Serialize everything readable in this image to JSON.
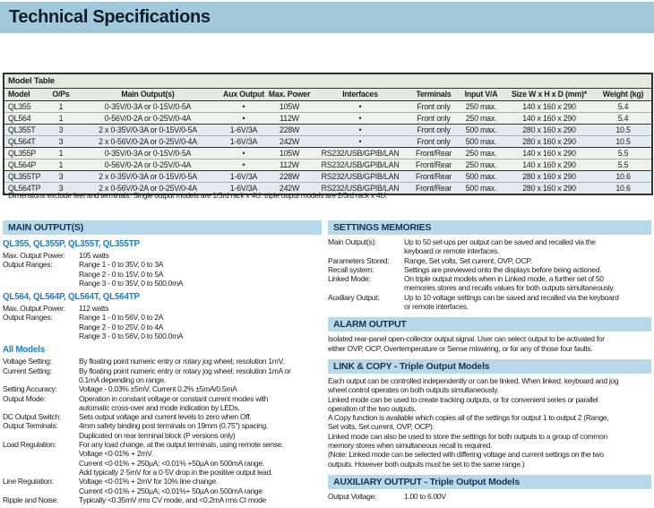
{
  "page": {
    "title": "Technical Specifications"
  },
  "colors": {
    "banner_bg": "#a2c8dc",
    "banner_text": "#101d28",
    "section_bar_bg": "#b7d9ea",
    "heading_text": "#14364f",
    "subhead_blue": "#1d7dc0",
    "body_text": "#1d1d1b",
    "table_header_bg": "#e6e9e0",
    "row_light": "#eef1ec",
    "row_blue": "#e2ebf0"
  },
  "model_table": {
    "title": "Model Table",
    "columns": [
      "Model",
      "O/Ps",
      "Main Output(s)",
      "Aux Output",
      "Max. Power",
      "Interfaces",
      "Terminals",
      "Input V/A",
      "Size W x H x D (mm)*",
      "Weight (kg)"
    ],
    "rows": [
      [
        "QL355",
        "1",
        "0-35V/0-3A or 0-15V/0-5A",
        "•",
        "105W",
        "•",
        "Front only",
        "250 max.",
        "140 x 160  x 290",
        "5.4"
      ],
      [
        "QL564",
        "1",
        "0-56V/0-2A or 0-25V/0-4A",
        "•",
        "112W",
        "•",
        "Front only",
        "250 max.",
        "140 x 160  x 290",
        "5.4"
      ],
      [
        "QL355T",
        "3",
        "2 x 0-35V/0-3A or 0-15V/0-5A",
        "1-6V/3A",
        "228W",
        "•",
        "Front only",
        "500 max.",
        "280 x 160  x 290",
        "10.5"
      ],
      [
        "QL564T",
        "3",
        "2 x 0-56V/0-2A or 0-25V/0-4A",
        "1-6V/3A",
        "242W",
        "•",
        "Front only",
        "500 max.",
        "280 x 160  x 290",
        "10.5"
      ],
      [
        "QL355P",
        "1",
        "0-35V/0-3A or 0-15V/0-5A",
        "•",
        "105W",
        "RS232/USB/GPIB/LAN",
        "Front/Rear",
        "250 max.",
        "140 x 160  x 290",
        "5.5"
      ],
      [
        "QL564P",
        "1",
        "0-56V/0-2A or 0-25V/0-4A",
        "•",
        "112W",
        "RS232/USB/GPIB/LAN",
        "Front/Rear",
        "250 max.",
        "140 x 160  x 290",
        "5.5"
      ],
      [
        "QL355TP",
        "3",
        "2 x 0-35V/0-3A or 0-15V/0-5A",
        "1-6V/3A",
        "228W",
        "RS232/USB/GPIB/LAN",
        "Front/Rear",
        "500 max.",
        "280 x 160  x 290",
        "10.6"
      ],
      [
        "QL564TP",
        "3",
        "2 x 0-56V/0-2A or 0-25V/0-4A",
        "1-6V/3A",
        "242W",
        "RS232/USB/GPIB/LAN",
        "Front/Rear",
        "500 max.",
        "280 x 160  x 290",
        "10.6"
      ]
    ],
    "footnote": "* Dimensions exclude feet and terminals.  Single output models are 1/3rd rack x 4U. triple ouput models are 2/3rd rack x 4U."
  },
  "main_outputs": {
    "heading": "MAIN OUTPUT(S)",
    "groups": [
      {
        "subheading": "QL355, QL355P, QL355T, QL355TP",
        "specs": [
          {
            "label": "Max. Output Power:",
            "value": "105 watts"
          },
          {
            "label": "Output Ranges:",
            "value": "Range 1 - 0 to 35V, 0 to 3A\nRange 2 - 0 to 15V, 0 to 5A\nRange 3 - 0 to 35V, 0 to 500.0mA"
          }
        ]
      },
      {
        "subheading": "QL564, QL564P, QL564T, QL564TP",
        "specs": [
          {
            "label": "Max. Output Power:",
            "value": "112 watts"
          },
          {
            "label": "Output Ranges:",
            "value": "Range 1 - 0 to 56V, 0 to 2A\nRange 2 - 0 to 25V, 0 to 4A\nRange 3 - 0 to 56V, 0 to 500.0mA"
          }
        ]
      },
      {
        "subheading": "All Models",
        "specs": [
          {
            "label": "Voltage Setting:",
            "value": "By floating point numeric entry or rotary jog wheel; resolution 1mV."
          },
          {
            "label": "Current Setting:",
            "value": "By floating point numeric entry or rotary jog wheel; resolution 1mA or\n0.1mA depending on range."
          },
          {
            "label": "Setting Accuracy:",
            "value": "Voltage - 0.03% ±5mV.  Current 0.2% ±5mA/0.5mA"
          },
          {
            "label": "Output Mode:",
            "value": "Operation in constant voltage or constant current modes with\nautomatic cross-over and mode indication by LEDs."
          },
          {
            "label": "DC Output Switch:",
            "value": "Sets output voltage and current levels to zero when Off."
          },
          {
            "label": "Output Terminals:",
            "value": "4mm safety binding post terminals on 19mm (0.75\") spacing.\nDuplicated on rear terminal block (P versions only)"
          },
          {
            "label": "Load Regulation:",
            "value": "For any load change, at the output terminals, using remote sense.\nVoltage <0·01% + 2mV.\nCurrent <0·01% + 250µA; <0.01% +50µA on 500mA range.\nAdd typically 2·5mV for a 0·5V drop in the positive output lead."
          },
          {
            "label": "Line Regulation:",
            "value": "Voltage <0·01% + 2mV for 10% line change.\nCurrent <0·01% + 250µA; <0.01%+ 50µA on 500mA range"
          },
          {
            "label": "Ripple and Noise:",
            "value": "Typically <0.35mV rms CV mode, and <0.2mA rms CI mode"
          }
        ]
      }
    ]
  },
  "settings_memories": {
    "heading": "SETTINGS MEMORIES",
    "specs": [
      {
        "label": "Main Output(s):",
        "value": "Up to 50 set-ups per output can be saved and recalled via the\nkeyboard or remote interfaces."
      },
      {
        "label": "Parameters Stored:",
        "value": "Range, Set volts, Set current, OVP, OCP."
      },
      {
        "label": "Recall system:",
        "value": "Settings are previewed onto the displays before being actioned."
      },
      {
        "label": "Linked Mode:",
        "value": "On triple output models when in Linked mode, a further set of 50\nmemories stores and recalls values for both outputs simultaneously."
      },
      {
        "label": "Auxiliary Output:",
        "value": "Up to 10 voltage settings can be saved and recalled via the keyboard\nor remote interfaces."
      }
    ]
  },
  "alarm_output": {
    "heading": "ALARM OUTPUT",
    "text": "Isolated rear-panel open-collector output signal.  User can select output to be activated for\neither OVP, OCP, Overtemperature or Sense miswiring, or for any of those four faults."
  },
  "link_copy": {
    "heading": "LINK & COPY - Triple Output Models",
    "paragraphs": [
      "Each output can be controlled independently or can be linked.  When linked, keyboard and jog\nwheel control operates on both outputs simultaneously.",
      "Linked mode can be used to create tracking outputs, or for convenient series or parallel\noperation of the two outputs.",
      "A Copy function is available which copies all of the settings for output 1 to output 2 (Range,\nSet volts, Set current, OVP, OCP).",
      "Linked mode can also be used to store the settings for both outputs to a group of common\nmemory stores when simultaneous recall is required.",
      "(Note: Linked mode can be selected with differing voltage and current settings on the two\noutputs.  However both outputs must be set to the same range.)"
    ]
  },
  "auxiliary_output": {
    "heading": "AUXILIARY OUTPUT - Triple Output Models",
    "specs": [
      {
        "label": "Output Voltage:",
        "value": "1.00 to 6.00V"
      }
    ]
  }
}
